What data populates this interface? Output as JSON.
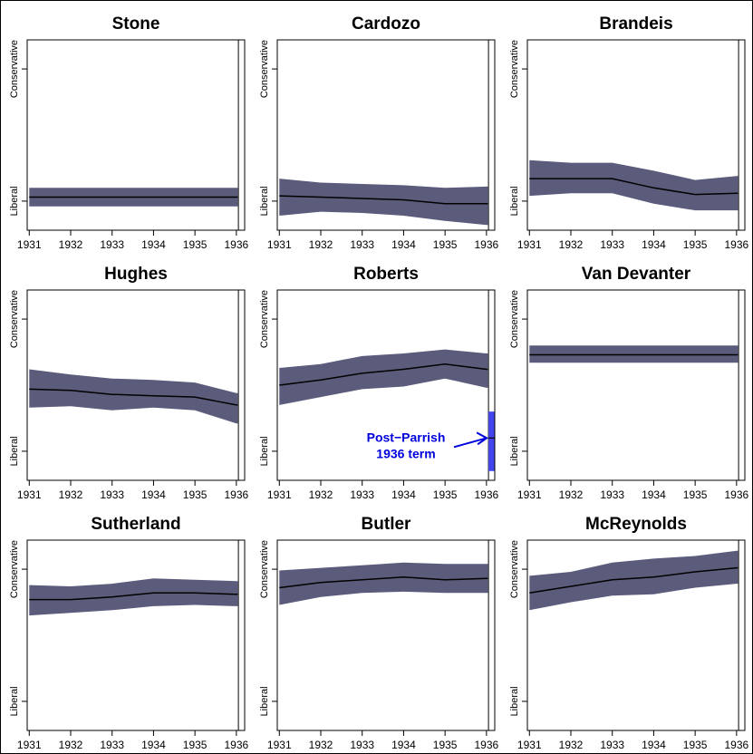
{
  "colors": {
    "band": "#5b5b7c",
    "line": "#000000",
    "vline": "#555555",
    "highlight": "#4444ee",
    "annotation": "#0000dd"
  },
  "chart_data": {
    "type": "line",
    "ylim": [
      0,
      1
    ],
    "y_tick_labels": {
      "top": "Conservative",
      "bottom": "Liberal"
    },
    "x_ticks": [
      1931,
      1932,
      1933,
      1934,
      1935,
      1936
    ],
    "xlim": [
      1930.95,
      1936.2
    ],
    "vline_at": 1936.05,
    "panels": [
      {
        "title": "Stone",
        "mean": [
          0.03,
          0.03,
          0.03,
          0.03,
          0.03,
          0.03,
          0.03
        ],
        "lower": [
          -0.04,
          -0.04,
          -0.04,
          -0.04,
          -0.04,
          -0.04,
          -0.04
        ],
        "upper": [
          0.1,
          0.1,
          0.1,
          0.1,
          0.1,
          0.1,
          0.1
        ]
      },
      {
        "title": "Cardozo",
        "mean": [
          0.04,
          0.03,
          0.02,
          0.01,
          -0.02,
          -0.02,
          -0.02
        ],
        "lower": [
          -0.11,
          -0.08,
          -0.09,
          -0.11,
          -0.15,
          -0.18,
          -0.18
        ],
        "upper": [
          0.17,
          0.14,
          0.13,
          0.12,
          0.1,
          0.11,
          0.11
        ]
      },
      {
        "title": "Brandeis",
        "mean": [
          0.17,
          0.17,
          0.17,
          0.1,
          0.05,
          0.06,
          0.06
        ],
        "lower": [
          0.04,
          0.06,
          0.06,
          -0.02,
          -0.07,
          -0.07,
          -0.07
        ],
        "upper": [
          0.31,
          0.29,
          0.29,
          0.23,
          0.16,
          0.19,
          0.19
        ]
      },
      {
        "title": "Hughes",
        "mean": [
          0.47,
          0.46,
          0.43,
          0.42,
          0.41,
          0.35,
          0.35
        ],
        "lower": [
          0.33,
          0.34,
          0.31,
          0.33,
          0.31,
          0.21,
          0.21
        ],
        "upper": [
          0.62,
          0.58,
          0.55,
          0.54,
          0.52,
          0.44,
          0.44
        ]
      },
      {
        "title": "Roberts",
        "mean": [
          0.5,
          0.54,
          0.59,
          0.62,
          0.66,
          0.62,
          0.62
        ],
        "lower": [
          0.35,
          0.41,
          0.47,
          0.49,
          0.55,
          0.48,
          0.48
        ],
        "upper": [
          0.63,
          0.66,
          0.72,
          0.74,
          0.77,
          0.74,
          0.74
        ],
        "post_parrish": {
          "mean": 0.1,
          "lower": -0.15,
          "upper": 0.3,
          "label": "Post−Parrish\n1936 term"
        }
      },
      {
        "title": "Van Devanter",
        "mean": [
          0.73,
          0.73,
          0.73,
          0.73,
          0.73,
          0.73,
          0.73
        ],
        "lower": [
          0.67,
          0.67,
          0.67,
          0.67,
          0.67,
          0.67,
          0.67
        ],
        "upper": [
          0.8,
          0.8,
          0.8,
          0.8,
          0.8,
          0.8,
          0.8
        ]
      },
      {
        "title": "Sutherland",
        "mean": [
          0.77,
          0.77,
          0.79,
          0.82,
          0.82,
          0.81,
          0.81
        ],
        "lower": [
          0.65,
          0.67,
          0.69,
          0.72,
          0.73,
          0.72,
          0.72
        ],
        "upper": [
          0.88,
          0.87,
          0.89,
          0.93,
          0.92,
          0.91,
          0.91
        ]
      },
      {
        "title": "Butler",
        "mean": [
          0.86,
          0.9,
          0.92,
          0.94,
          0.92,
          0.93,
          0.93
        ],
        "lower": [
          0.73,
          0.79,
          0.82,
          0.83,
          0.82,
          0.82,
          0.82
        ],
        "upper": [
          0.99,
          1.01,
          1.03,
          1.05,
          1.04,
          1.04,
          1.04
        ]
      },
      {
        "title": "McReynolds",
        "mean": [
          0.82,
          0.87,
          0.92,
          0.94,
          0.98,
          1.01,
          1.01
        ],
        "lower": [
          0.69,
          0.75,
          0.8,
          0.81,
          0.86,
          0.89,
          0.89
        ],
        "upper": [
          0.95,
          0.98,
          1.05,
          1.08,
          1.1,
          1.14,
          1.14
        ]
      }
    ]
  }
}
